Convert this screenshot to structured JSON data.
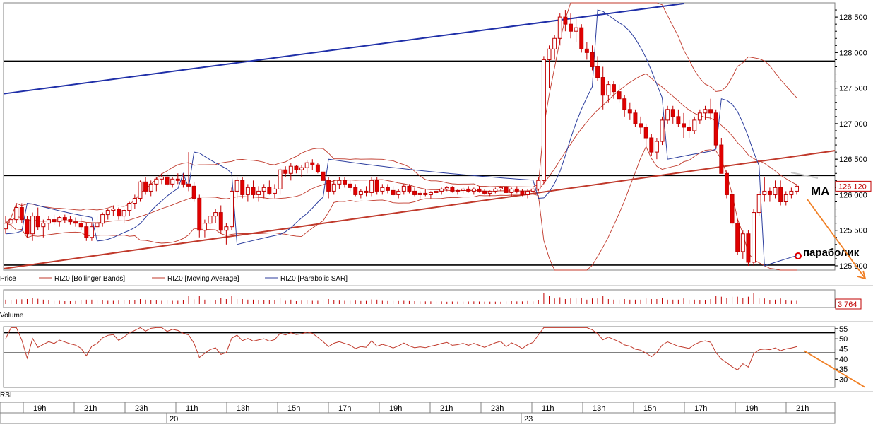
{
  "chart_data": {
    "type": "candlestick",
    "instrument": "RIZ0",
    "price_axis": {
      "ticks": [
        "128 500",
        "128 000",
        "127 500",
        "127 000",
        "126 500",
        "126 000",
        "125 500",
        "125 000"
      ],
      "tick_values": [
        128500,
        128000,
        127500,
        127000,
        126500,
        126000,
        125500,
        125000
      ],
      "ylim": [
        124940,
        128700
      ],
      "last_price_label": "126 120"
    },
    "legend": [
      {
        "label": "Price",
        "color": "#000000"
      },
      {
        "label": "RIZ0 [Bollinger Bands]",
        "color": "#c0392b"
      },
      {
        "label": "RIZ0 [Moving Average]",
        "color": "#c0392b"
      },
      {
        "label": "RIZ0 [Parabolic SAR]",
        "color": "#2c3e9e"
      }
    ],
    "annotations": {
      "ma_label": "MA",
      "sar_label": "параболик"
    },
    "volume": {
      "label": "Volume",
      "last_value_label": "3 764"
    },
    "rsi": {
      "label": "RSI",
      "ticks": [
        "55",
        "50",
        "45",
        "40",
        "35",
        "30"
      ],
      "tick_values": [
        55,
        50,
        45,
        40,
        35,
        30
      ],
      "ylim": [
        26,
        56
      ],
      "h_levels": [
        53,
        43
      ]
    },
    "time_axis": {
      "labels": [
        "19h",
        "21h",
        "23h",
        "11h",
        "13h",
        "15h",
        "17h",
        "19h",
        "21h",
        "23h",
        "11h",
        "13h",
        "15h",
        "17h",
        "19h",
        "21h"
      ],
      "date_labels": [
        "20",
        "23"
      ]
    },
    "horizontal_levels": [
      127880,
      126270,
      125010
    ],
    "trend_lines": [
      {
        "name": "resistance-trend",
        "color": "#1f2fa8",
        "from": [
          0,
          127420
        ],
        "to": [
          126,
          128690
        ]
      },
      {
        "name": "support-trend",
        "color": "#c0392b",
        "from": [
          0,
          124960
        ],
        "to": [
          166,
          126620
        ]
      }
    ],
    "candles": [
      [
        125520,
        125700,
        125450,
        125600
      ],
      [
        125600,
        125720,
        125520,
        125650
      ],
      [
        125650,
        125880,
        125600,
        125820
      ],
      [
        125820,
        125880,
        125600,
        125650
      ],
      [
        125650,
        125700,
        125400,
        125450
      ],
      [
        125450,
        125750,
        125350,
        125700
      ],
      [
        125700,
        125820,
        125500,
        125550
      ],
      [
        125550,
        125650,
        125400,
        125600
      ],
      [
        125600,
        125700,
        125500,
        125650
      ],
      [
        125650,
        125720,
        125580,
        125620
      ],
      [
        125620,
        125700,
        125550,
        125680
      ],
      [
        125680,
        125720,
        125600,
        125650
      ],
      [
        125650,
        125700,
        125580,
        125620
      ],
      [
        125620,
        125680,
        125550,
        125600
      ],
      [
        125600,
        125680,
        125500,
        125550
      ],
      [
        125550,
        125600,
        125350,
        125400
      ],
      [
        125400,
        125600,
        125350,
        125550
      ],
      [
        125550,
        125700,
        125450,
        125600
      ],
      [
        125600,
        125750,
        125550,
        125720
      ],
      [
        125720,
        125800,
        125650,
        125780
      ],
      [
        125780,
        125850,
        125700,
        125800
      ],
      [
        125800,
        125820,
        125650,
        125700
      ],
      [
        125700,
        125800,
        125600,
        125780
      ],
      [
        125780,
        125900,
        125700,
        125880
      ],
      [
        125880,
        126000,
        125800,
        125950
      ],
      [
        125950,
        126200,
        125900,
        126180
      ],
      [
        126180,
        126250,
        126000,
        126050
      ],
      [
        126050,
        126200,
        125980,
        126150
      ],
      [
        126150,
        126250,
        126050,
        126220
      ],
      [
        126220,
        126300,
        126150,
        126250
      ],
      [
        126250,
        126300,
        126120,
        126150
      ],
      [
        126150,
        126250,
        126100,
        126220
      ],
      [
        126220,
        126300,
        126150,
        126200
      ],
      [
        126200,
        126300,
        126100,
        126150
      ],
      [
        126150,
        126600,
        126050,
        126120
      ],
      [
        126120,
        126180,
        125900,
        125950
      ],
      [
        125950,
        126000,
        125400,
        125500
      ],
      [
        125500,
        125650,
        125400,
        125600
      ],
      [
        125600,
        125750,
        125500,
        125700
      ],
      [
        125700,
        125800,
        125600,
        125750
      ],
      [
        125750,
        125850,
        125450,
        125500
      ],
      [
        125500,
        125600,
        125300,
        125550
      ],
      [
        125550,
        126100,
        125500,
        126050
      ],
      [
        126050,
        126250,
        125950,
        126200
      ],
      [
        126200,
        126250,
        125950,
        126000
      ],
      [
        126000,
        126150,
        125900,
        126100
      ],
      [
        126100,
        126200,
        125950,
        126000
      ],
      [
        126000,
        126120,
        125900,
        126050
      ],
      [
        126050,
        126150,
        125950,
        126100
      ],
      [
        126100,
        126200,
        126000,
        126020
      ],
      [
        126020,
        126150,
        125950,
        126080
      ],
      [
        126080,
        126380,
        126000,
        126350
      ],
      [
        126350,
        126400,
        126250,
        126300
      ],
      [
        126300,
        126450,
        126200,
        126400
      ],
      [
        126400,
        126420,
        126300,
        126350
      ],
      [
        126350,
        126420,
        126250,
        126380
      ],
      [
        126380,
        126480,
        126300,
        126450
      ],
      [
        126450,
        126500,
        126350,
        126420
      ],
      [
        126420,
        126450,
        126300,
        126320
      ],
      [
        126320,
        126350,
        126150,
        126200
      ],
      [
        126200,
        126250,
        125950,
        126050
      ],
      [
        126050,
        126200,
        126000,
        126150
      ],
      [
        126150,
        126250,
        126080,
        126200
      ],
      [
        126200,
        126250,
        126100,
        126150
      ],
      [
        126150,
        126200,
        126050,
        126100
      ],
      [
        126100,
        126150,
        125980,
        126000
      ],
      [
        126000,
        126080,
        125950,
        126050
      ],
      [
        126050,
        126120,
        125980,
        126030
      ],
      [
        126030,
        126250,
        125980,
        126200
      ],
      [
        126200,
        126250,
        126000,
        126050
      ],
      [
        126050,
        126150,
        126000,
        126100
      ],
      [
        126100,
        126150,
        126020,
        126060
      ],
      [
        126060,
        126120,
        125980,
        126000
      ],
      [
        126000,
        126080,
        125950,
        126050
      ],
      [
        126050,
        126150,
        126000,
        126120
      ],
      [
        126120,
        126150,
        126020,
        126050
      ],
      [
        126050,
        126100,
        125980,
        126000
      ],
      [
        126000,
        126050,
        125950,
        126020
      ],
      [
        126020,
        126080,
        125980,
        126000
      ],
      [
        126000,
        126050,
        125950,
        126030
      ],
      [
        126030,
        126080,
        125980,
        126050
      ],
      [
        126050,
        126100,
        126000,
        126080
      ],
      [
        126080,
        126120,
        126050,
        126100
      ],
      [
        126100,
        126120,
        126030,
        126050
      ],
      [
        126050,
        126080,
        126000,
        126060
      ],
      [
        126060,
        126100,
        126020,
        126080
      ],
      [
        126080,
        126120,
        126030,
        126050
      ],
      [
        126050,
        126100,
        126000,
        126080
      ],
      [
        126080,
        126120,
        126030,
        126050
      ],
      [
        126050,
        126080,
        126000,
        126020
      ],
      [
        126020,
        126060,
        125980,
        126050
      ],
      [
        126050,
        126100,
        126020,
        126080
      ],
      [
        126080,
        126120,
        126050,
        126100
      ],
      [
        126100,
        126120,
        126020,
        126030
      ],
      [
        126030,
        126100,
        125980,
        126080
      ],
      [
        126080,
        126120,
        126020,
        126050
      ],
      [
        126050,
        126080,
        125980,
        126000
      ],
      [
        126000,
        126080,
        125950,
        126050
      ],
      [
        126050,
        126100,
        126000,
        126080
      ],
      [
        126080,
        126250,
        126050,
        126200
      ],
      [
        126200,
        127950,
        126150,
        127900
      ],
      [
        127900,
        128100,
        127500,
        128050
      ],
      [
        128050,
        128250,
        127900,
        128200
      ],
      [
        128200,
        128550,
        128100,
        128500
      ],
      [
        128500,
        128600,
        128300,
        128400
      ],
      [
        128400,
        128550,
        128200,
        128300
      ],
      [
        128300,
        128500,
        128150,
        128350
      ],
      [
        128350,
        128400,
        128000,
        128050
      ],
      [
        128050,
        128150,
        127900,
        128000
      ],
      [
        128000,
        128100,
        127750,
        127800
      ],
      [
        127800,
        127950,
        127600,
        127650
      ],
      [
        127650,
        127800,
        127200,
        127400
      ],
      [
        127400,
        127600,
        127300,
        127550
      ],
      [
        127550,
        127600,
        127350,
        127450
      ],
      [
        127450,
        127550,
        127300,
        127350
      ],
      [
        127350,
        127400,
        127100,
        127200
      ],
      [
        127200,
        127300,
        127050,
        127150
      ],
      [
        127150,
        127200,
        126950,
        127000
      ],
      [
        127000,
        127100,
        126850,
        126950
      ],
      [
        126950,
        127000,
        126650,
        126800
      ],
      [
        126800,
        126850,
        126550,
        126600
      ],
      [
        126600,
        126800,
        126500,
        126750
      ],
      [
        126750,
        127100,
        126700,
        127050
      ],
      [
        127050,
        127250,
        127000,
        127200
      ],
      [
        127200,
        127250,
        127000,
        127100
      ],
      [
        127100,
        127200,
        126950,
        127000
      ],
      [
        127000,
        127150,
        126800,
        126950
      ],
      [
        126950,
        127050,
        126800,
        126900
      ],
      [
        126900,
        127100,
        126850,
        127050
      ],
      [
        127050,
        127200,
        127000,
        127150
      ],
      [
        127150,
        127250,
        127050,
        127200
      ],
      [
        127200,
        127350,
        127050,
        127150
      ],
      [
        127150,
        127200,
        126650,
        126700
      ],
      [
        126700,
        126800,
        126300,
        126300
      ],
      [
        126300,
        126350,
        125950,
        126000
      ],
      [
        126000,
        126050,
        125550,
        125600
      ],
      [
        125600,
        125650,
        125150,
        125200
      ],
      [
        125200,
        125500,
        125100,
        125450
      ],
      [
        125450,
        125500,
        125000,
        125050
      ],
      [
        125050,
        125800,
        125000,
        125750
      ],
      [
        125750,
        126050,
        125700,
        126000
      ],
      [
        126000,
        126250,
        125900,
        126050
      ],
      [
        126050,
        126100,
        125900,
        126000
      ],
      [
        126000,
        126200,
        125950,
        126100
      ],
      [
        126100,
        126200,
        125850,
        125900
      ],
      [
        125900,
        126050,
        125850,
        126000
      ],
      [
        126000,
        126100,
        125950,
        126050
      ],
      [
        126050,
        126150,
        126000,
        126120
      ]
    ]
  }
}
